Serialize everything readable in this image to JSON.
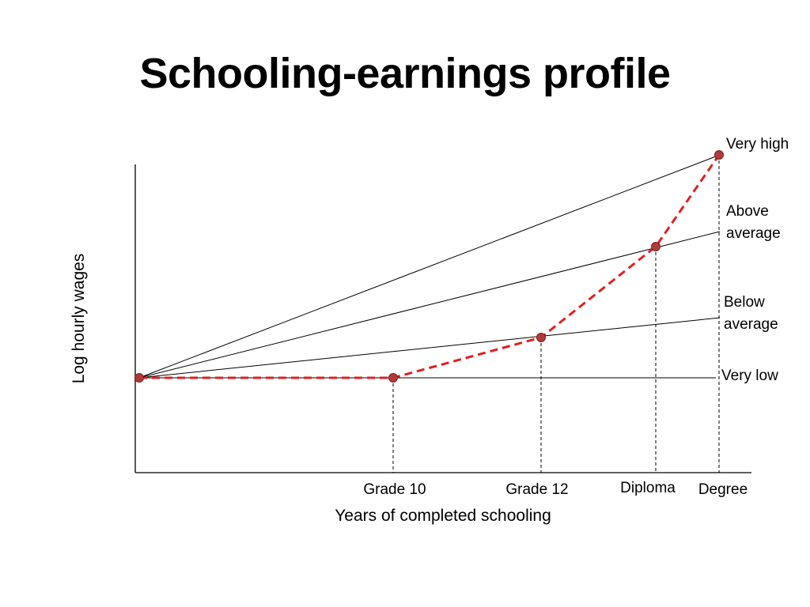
{
  "title": "Schooling-earnings profile",
  "axes": {
    "x_label": "Years of completed schooling",
    "y_label": "Log hourly wages"
  },
  "x_categories": [
    "Grade 10",
    "Grade 12",
    "Diploma",
    "Degree"
  ],
  "ability_lines": [
    {
      "label_lines": [
        "Very high"
      ]
    },
    {
      "label_lines": [
        "Above",
        "average"
      ]
    },
    {
      "label_lines": [
        "Below",
        "average"
      ]
    },
    {
      "label_lines": [
        "Very low"
      ]
    }
  ],
  "colors": {
    "profile": "#e02020",
    "marker": "#b03a3a",
    "line": "#000000"
  }
}
